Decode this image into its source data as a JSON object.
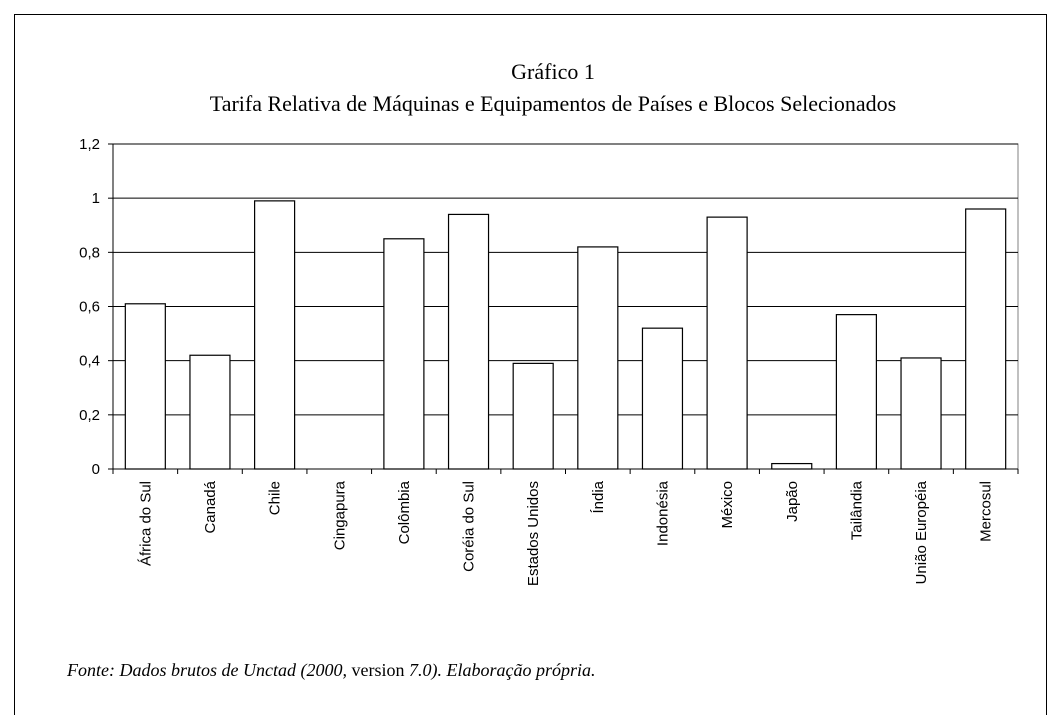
{
  "chart_data": {
    "type": "bar",
    "title": "Gráfico 1",
    "subtitle": "Tarifa Relativa de Máquinas e Equipamentos de Países e Blocos Selecionados",
    "categories": [
      "África do Sul",
      "Canadá",
      "Chile",
      "Cingapura",
      "Colômbia",
      "Coréia do Sul",
      "Estados Unidos",
      "Índia",
      "Indonésia",
      "México",
      "Japão",
      "Tailândia",
      "União Européia",
      "Mercosul"
    ],
    "values": [
      0.61,
      0.42,
      0.99,
      0,
      0.85,
      0.94,
      0.39,
      0.82,
      0.52,
      0.93,
      0.02,
      0.57,
      0.41,
      0.96
    ],
    "color": "#ffffff",
    "ylim": [
      0,
      1.2
    ],
    "yticks": [
      0,
      {
        "value": 0.2,
        "label": "0,2"
      },
      {
        "value": 0.4,
        "label": "0,4"
      },
      {
        "value": 0.6,
        "label": "0,6"
      },
      {
        "value": 0.8,
        "label": "0,8"
      },
      1,
      {
        "value": 1.2,
        "label": "1,2"
      }
    ],
    "grid": true,
    "source": [
      "Fonte: Dados brutos de Unctad (2000, ",
      "version",
      " 7.0). Elaboração própria."
    ]
  }
}
